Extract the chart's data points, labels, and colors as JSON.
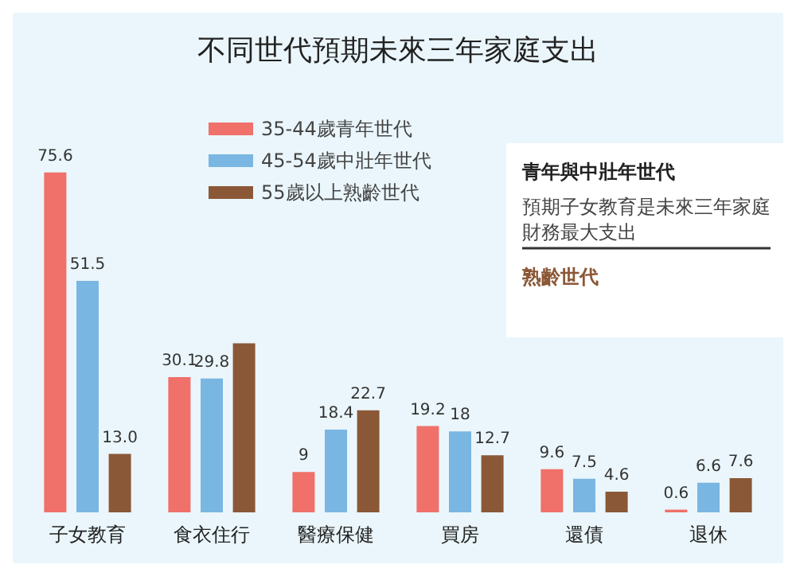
{
  "chart_data": {
    "type": "bar",
    "title": "不同世代預期未來三年家庭支出",
    "categories": [
      "子女教育",
      "食衣住行",
      "醫療保健",
      "買房",
      "還債",
      "退休"
    ],
    "series": [
      {
        "name": "35-44歲青年世代",
        "color": "#f0706a",
        "values": [
          75.6,
          30.1,
          9,
          19.2,
          9.6,
          0.6
        ],
        "value_labels": [
          "75.6",
          "30.1",
          "9",
          "19.2",
          "9.6",
          "0.6"
        ]
      },
      {
        "name": "45-54歲中壯年世代",
        "color": "#7ab6e2",
        "values": [
          51.5,
          29.8,
          18.4,
          18,
          7.5,
          6.6
        ],
        "value_labels": [
          "51.5",
          "29.8",
          "18.4",
          "18",
          "7.5",
          "6.6"
        ]
      },
      {
        "name": "55歲以上熟齡世代",
        "color": "#8b5837",
        "values": [
          13.0,
          37.6,
          22.7,
          12.7,
          4.6,
          7.6
        ],
        "value_labels": [
          "13.0",
          null,
          "22.7",
          "12.7",
          "4.6",
          "7.6"
        ]
      }
    ],
    "legend": "top",
    "annotations": [
      "青年與中壯年世代",
      "預期子女教育是未來三年家庭財務最大支出",
      "熟齡世代"
    ]
  }
}
